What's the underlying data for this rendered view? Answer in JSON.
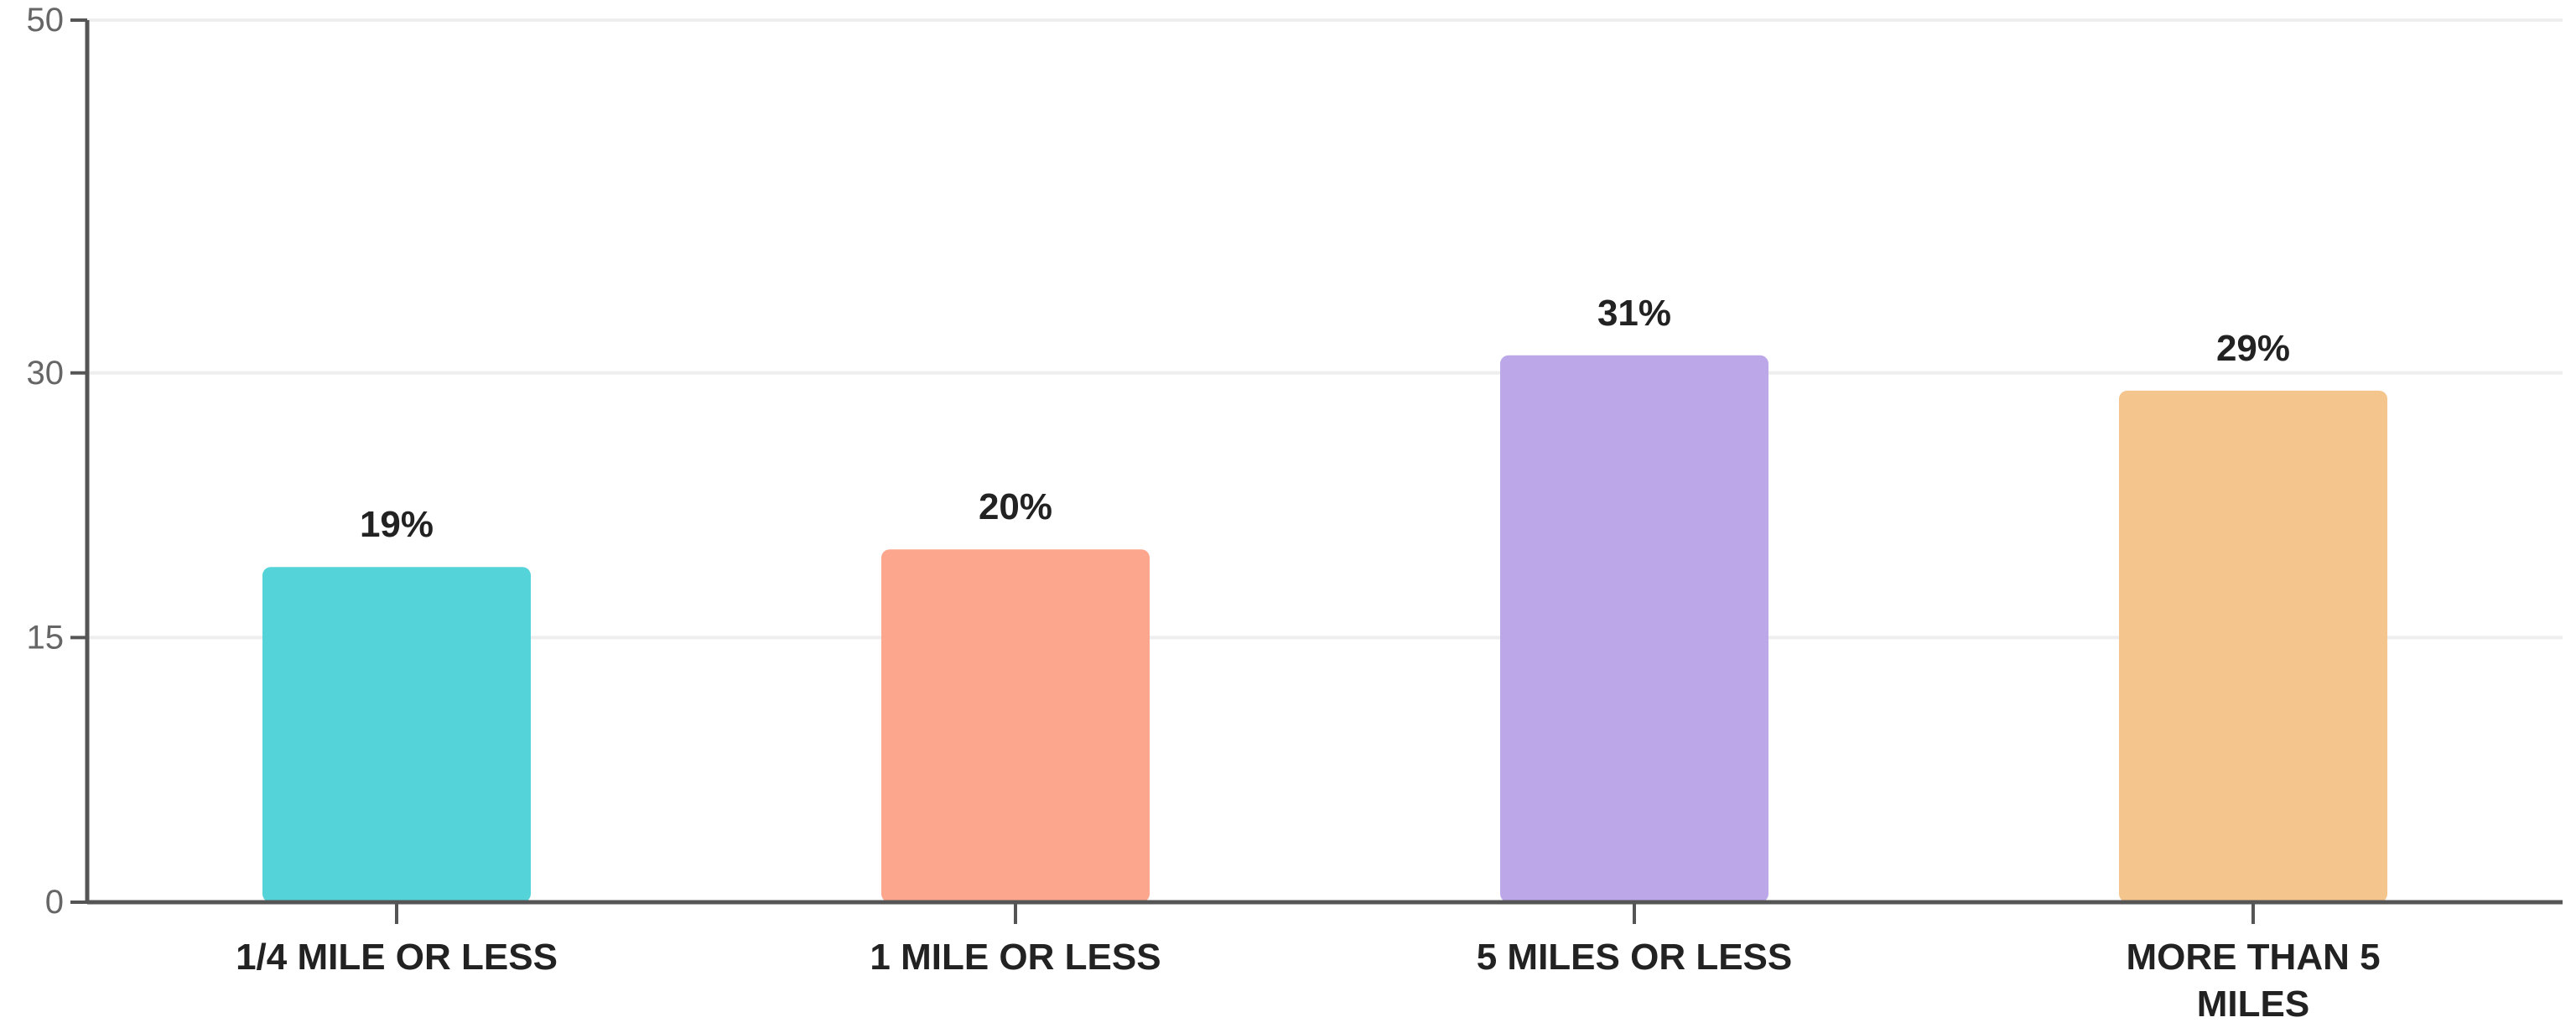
{
  "chart_data": {
    "type": "bar",
    "categories": [
      "1/4 MILE OR LESS",
      "1 MILE OR LESS",
      "5 MILES OR LESS",
      "MORE THAN 5 MILES"
    ],
    "category_label_lines": [
      [
        "1/4 MILE OR LESS"
      ],
      [
        "1 MILE OR LESS"
      ],
      [
        "5 MILES OR LESS"
      ],
      [
        "MORE THAN 5",
        "MILES"
      ]
    ],
    "values": [
      19,
      20,
      31,
      29
    ],
    "value_labels": [
      "19%",
      "20%",
      "31%",
      "29%"
    ],
    "colors": [
      "#54D4D9",
      "#FBA68D",
      "#BCA8E8",
      "#F4C58C"
    ],
    "ylim": [
      0,
      50
    ],
    "yticks": [
      0,
      15,
      30,
      50
    ],
    "ytick_labels": [
      "0",
      "15",
      "30",
      "50"
    ],
    "grid": true,
    "title": "",
    "xlabel": "",
    "ylabel": ""
  }
}
